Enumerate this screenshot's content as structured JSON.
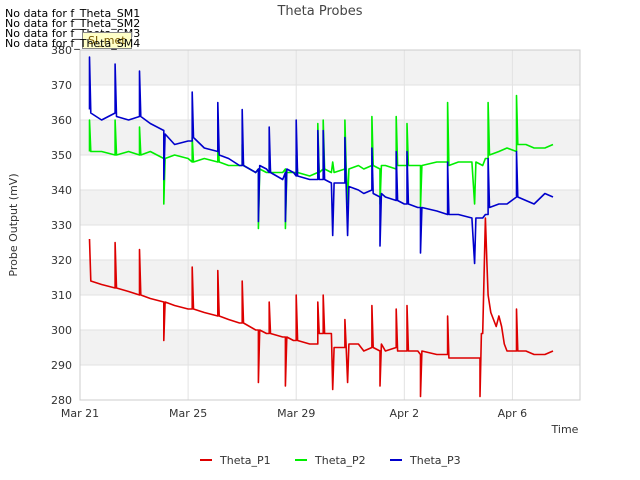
{
  "chart_data": {
    "type": "line",
    "title": "Theta Probes",
    "xlabel": "Time",
    "ylabel": "Probe Output (mV)",
    "ylim": [
      280,
      380
    ],
    "yticks": [
      280,
      290,
      300,
      310,
      320,
      330,
      340,
      350,
      360,
      370,
      380
    ],
    "xlim": [
      0,
      18.5
    ],
    "xticks": [
      {
        "value": 0,
        "label": "Mar 21"
      },
      {
        "value": 4,
        "label": "Mar 25"
      },
      {
        "value": 8,
        "label": "Mar 29"
      },
      {
        "value": 12,
        "label": "Apr 2"
      },
      {
        "value": 16,
        "label": "Apr 6"
      }
    ],
    "x_unit": "days since Mar 21",
    "grid": true,
    "legend_position": "bottom",
    "no_data_messages": [
      "No data for f_Theta_SM1",
      "No data for f_Theta_SM2",
      "No data for f_Theta_SM3",
      "No data for f_Theta_SM4"
    ],
    "badge": "SI_met",
    "series": [
      {
        "name": "Theta_P1",
        "color": "#dd0000",
        "points": [
          [
            0.35,
            326
          ],
          [
            0.4,
            314
          ],
          [
            0.8,
            313
          ],
          [
            1.3,
            312
          ],
          [
            1.3,
            325
          ],
          [
            1.35,
            312
          ],
          [
            1.8,
            311
          ],
          [
            2.2,
            310
          ],
          [
            2.2,
            323
          ],
          [
            2.25,
            310
          ],
          [
            2.6,
            309
          ],
          [
            3.1,
            308
          ],
          [
            3.1,
            297
          ],
          [
            3.15,
            308
          ],
          [
            3.5,
            307
          ],
          [
            4.0,
            306
          ],
          [
            4.15,
            306
          ],
          [
            4.15,
            318
          ],
          [
            4.2,
            306
          ],
          [
            4.6,
            305
          ],
          [
            5.1,
            304
          ],
          [
            5.1,
            317
          ],
          [
            5.15,
            304
          ],
          [
            5.5,
            303
          ],
          [
            5.9,
            302
          ],
          [
            6.0,
            302
          ],
          [
            6.0,
            314
          ],
          [
            6.05,
            302
          ],
          [
            6.5,
            300
          ],
          [
            6.6,
            300
          ],
          [
            6.6,
            285
          ],
          [
            6.65,
            300
          ],
          [
            6.9,
            299
          ],
          [
            7.0,
            299
          ],
          [
            7.0,
            308
          ],
          [
            7.05,
            299
          ],
          [
            7.5,
            298
          ],
          [
            7.6,
            298
          ],
          [
            7.6,
            284
          ],
          [
            7.65,
            298
          ],
          [
            7.9,
            297
          ],
          [
            8.0,
            297
          ],
          [
            8.0,
            310
          ],
          [
            8.05,
            297
          ],
          [
            8.5,
            296
          ],
          [
            8.8,
            296
          ],
          [
            8.8,
            308
          ],
          [
            8.85,
            299
          ],
          [
            9.0,
            299
          ],
          [
            9.0,
            310
          ],
          [
            9.05,
            299
          ],
          [
            9.3,
            299
          ],
          [
            9.35,
            283
          ],
          [
            9.4,
            295
          ],
          [
            9.8,
            295
          ],
          [
            9.8,
            303
          ],
          [
            9.85,
            295
          ],
          [
            9.9,
            285
          ],
          [
            9.95,
            296
          ],
          [
            10.3,
            296
          ],
          [
            10.5,
            294
          ],
          [
            10.8,
            295
          ],
          [
            10.8,
            307
          ],
          [
            10.85,
            295
          ],
          [
            11.1,
            294
          ],
          [
            11.1,
            284
          ],
          [
            11.15,
            296
          ],
          [
            11.3,
            294
          ],
          [
            11.7,
            295
          ],
          [
            11.7,
            306
          ],
          [
            11.75,
            294
          ],
          [
            12.0,
            294
          ],
          [
            12.1,
            294
          ],
          [
            12.1,
            307
          ],
          [
            12.15,
            294
          ],
          [
            12.5,
            294
          ],
          [
            12.6,
            293
          ],
          [
            12.6,
            281
          ],
          [
            12.65,
            294
          ],
          [
            13.2,
            293
          ],
          [
            13.6,
            293
          ],
          [
            13.6,
            304
          ],
          [
            13.65,
            292
          ],
          [
            14.0,
            292
          ],
          [
            14.8,
            292
          ],
          [
            14.8,
            281
          ],
          [
            14.85,
            299
          ],
          [
            14.9,
            299
          ],
          [
            15.0,
            332
          ],
          [
            15.05,
            320
          ],
          [
            15.1,
            310
          ],
          [
            15.2,
            305
          ],
          [
            15.3,
            303
          ],
          [
            15.4,
            301
          ],
          [
            15.5,
            304
          ],
          [
            15.6,
            301
          ],
          [
            15.7,
            296
          ],
          [
            15.8,
            294
          ],
          [
            16.0,
            294
          ],
          [
            16.15,
            294
          ],
          [
            16.15,
            306
          ],
          [
            16.2,
            294
          ],
          [
            16.5,
            294
          ],
          [
            16.8,
            293
          ],
          [
            17.2,
            293
          ],
          [
            17.5,
            294
          ]
        ]
      },
      {
        "name": "Theta_P2",
        "color": "#00ee00",
        "points": [
          [
            0.35,
            351
          ],
          [
            0.35,
            360
          ],
          [
            0.4,
            351
          ],
          [
            0.8,
            351
          ],
          [
            1.3,
            350
          ],
          [
            1.3,
            360
          ],
          [
            1.35,
            350
          ],
          [
            1.8,
            351
          ],
          [
            2.2,
            350
          ],
          [
            2.2,
            358
          ],
          [
            2.25,
            350
          ],
          [
            2.6,
            351
          ],
          [
            3.1,
            349
          ],
          [
            3.1,
            336
          ],
          [
            3.15,
            349
          ],
          [
            3.5,
            350
          ],
          [
            4.0,
            349
          ],
          [
            4.15,
            348
          ],
          [
            4.15,
            355
          ],
          [
            4.2,
            348
          ],
          [
            4.6,
            349
          ],
          [
            5.1,
            348
          ],
          [
            5.1,
            356
          ],
          [
            5.15,
            348
          ],
          [
            5.5,
            347
          ],
          [
            5.9,
            347
          ],
          [
            6.0,
            347
          ],
          [
            6.0,
            353
          ],
          [
            6.05,
            347
          ],
          [
            6.5,
            345
          ],
          [
            6.6,
            346
          ],
          [
            6.6,
            329
          ],
          [
            6.65,
            346
          ],
          [
            6.9,
            345
          ],
          [
            7.0,
            345
          ],
          [
            7.0,
            351
          ],
          [
            7.05,
            345
          ],
          [
            7.5,
            345
          ],
          [
            7.6,
            346
          ],
          [
            7.6,
            329
          ],
          [
            7.65,
            345
          ],
          [
            7.9,
            345
          ],
          [
            8.0,
            345
          ],
          [
            8.0,
            350
          ],
          [
            8.05,
            345
          ],
          [
            8.5,
            344
          ],
          [
            8.8,
            345
          ],
          [
            8.8,
            359
          ],
          [
            8.85,
            345
          ],
          [
            9.0,
            346
          ],
          [
            9.0,
            360
          ],
          [
            9.05,
            346
          ],
          [
            9.3,
            345
          ],
          [
            9.35,
            348
          ],
          [
            9.4,
            345
          ],
          [
            9.8,
            346
          ],
          [
            9.8,
            360
          ],
          [
            9.85,
            346
          ],
          [
            9.9,
            336
          ],
          [
            9.95,
            346
          ],
          [
            10.3,
            347
          ],
          [
            10.5,
            346
          ],
          [
            10.8,
            347
          ],
          [
            10.8,
            361
          ],
          [
            10.85,
            347
          ],
          [
            11.1,
            346
          ],
          [
            11.1,
            336
          ],
          [
            11.15,
            347
          ],
          [
            11.3,
            347
          ],
          [
            11.7,
            346
          ],
          [
            11.7,
            361
          ],
          [
            11.75,
            347
          ],
          [
            12.0,
            347
          ],
          [
            12.1,
            347
          ],
          [
            12.1,
            359
          ],
          [
            12.15,
            347
          ],
          [
            12.5,
            347
          ],
          [
            12.6,
            347
          ],
          [
            12.6,
            335
          ],
          [
            12.65,
            347
          ],
          [
            13.2,
            348
          ],
          [
            13.6,
            348
          ],
          [
            13.6,
            365
          ],
          [
            13.65,
            347
          ],
          [
            14.0,
            348
          ],
          [
            14.5,
            348
          ],
          [
            14.6,
            336
          ],
          [
            14.65,
            348
          ],
          [
            14.9,
            347
          ],
          [
            15.0,
            349
          ],
          [
            15.1,
            349
          ],
          [
            15.1,
            365
          ],
          [
            15.15,
            350
          ],
          [
            15.5,
            351
          ],
          [
            15.8,
            352
          ],
          [
            16.15,
            351
          ],
          [
            16.15,
            367
          ],
          [
            16.2,
            353
          ],
          [
            16.5,
            353
          ],
          [
            16.8,
            352
          ],
          [
            17.2,
            352
          ],
          [
            17.5,
            353
          ]
        ]
      },
      {
        "name": "Theta_P3",
        "color": "#0000cc",
        "points": [
          [
            0.35,
            363
          ],
          [
            0.35,
            378
          ],
          [
            0.4,
            362
          ],
          [
            0.8,
            360
          ],
          [
            1.3,
            362
          ],
          [
            1.3,
            376
          ],
          [
            1.35,
            361
          ],
          [
            1.8,
            360
          ],
          [
            2.2,
            361
          ],
          [
            2.2,
            374
          ],
          [
            2.25,
            361
          ],
          [
            2.6,
            359
          ],
          [
            3.1,
            357
          ],
          [
            3.1,
            343
          ],
          [
            3.15,
            356
          ],
          [
            3.5,
            353
          ],
          [
            4.0,
            354
          ],
          [
            4.15,
            354
          ],
          [
            4.15,
            368
          ],
          [
            4.2,
            355
          ],
          [
            4.6,
            352
          ],
          [
            5.1,
            351
          ],
          [
            5.1,
            365
          ],
          [
            5.15,
            350
          ],
          [
            5.5,
            349
          ],
          [
            5.9,
            347
          ],
          [
            6.0,
            347
          ],
          [
            6.0,
            363
          ],
          [
            6.05,
            347
          ],
          [
            6.5,
            345
          ],
          [
            6.6,
            346
          ],
          [
            6.6,
            331
          ],
          [
            6.65,
            347
          ],
          [
            6.9,
            346
          ],
          [
            7.0,
            345
          ],
          [
            7.0,
            358
          ],
          [
            7.05,
            345
          ],
          [
            7.5,
            343
          ],
          [
            7.6,
            345
          ],
          [
            7.6,
            331
          ],
          [
            7.65,
            346
          ],
          [
            7.9,
            345
          ],
          [
            8.0,
            344
          ],
          [
            8.0,
            360
          ],
          [
            8.05,
            344
          ],
          [
            8.5,
            343
          ],
          [
            8.8,
            343
          ],
          [
            8.8,
            357
          ],
          [
            8.85,
            343
          ],
          [
            9.0,
            343
          ],
          [
            9.0,
            357
          ],
          [
            9.05,
            343
          ],
          [
            9.3,
            342
          ],
          [
            9.35,
            327
          ],
          [
            9.4,
            342
          ],
          [
            9.8,
            342
          ],
          [
            9.8,
            355
          ],
          [
            9.85,
            341
          ],
          [
            9.9,
            327
          ],
          [
            9.95,
            341
          ],
          [
            10.3,
            340
          ],
          [
            10.5,
            339
          ],
          [
            10.8,
            340
          ],
          [
            10.8,
            352
          ],
          [
            10.85,
            339
          ],
          [
            11.1,
            338
          ],
          [
            11.1,
            324
          ],
          [
            11.15,
            339
          ],
          [
            11.3,
            338
          ],
          [
            11.7,
            337
          ],
          [
            11.7,
            351
          ],
          [
            11.75,
            337
          ],
          [
            12.0,
            336
          ],
          [
            12.1,
            336
          ],
          [
            12.1,
            351
          ],
          [
            12.15,
            336
          ],
          [
            12.5,
            335
          ],
          [
            12.6,
            335
          ],
          [
            12.6,
            322
          ],
          [
            12.65,
            335
          ],
          [
            13.2,
            334
          ],
          [
            13.6,
            333
          ],
          [
            13.6,
            348
          ],
          [
            13.65,
            333
          ],
          [
            14.0,
            333
          ],
          [
            14.5,
            332
          ],
          [
            14.6,
            319
          ],
          [
            14.65,
            332
          ],
          [
            14.9,
            332
          ],
          [
            15.0,
            333
          ],
          [
            15.1,
            333
          ],
          [
            15.1,
            349
          ],
          [
            15.15,
            335
          ],
          [
            15.5,
            336
          ],
          [
            15.8,
            336
          ],
          [
            16.15,
            338
          ],
          [
            16.15,
            351
          ],
          [
            16.2,
            338
          ],
          [
            16.5,
            337
          ],
          [
            16.8,
            336
          ],
          [
            17.2,
            339
          ],
          [
            17.5,
            338
          ]
        ]
      }
    ]
  }
}
